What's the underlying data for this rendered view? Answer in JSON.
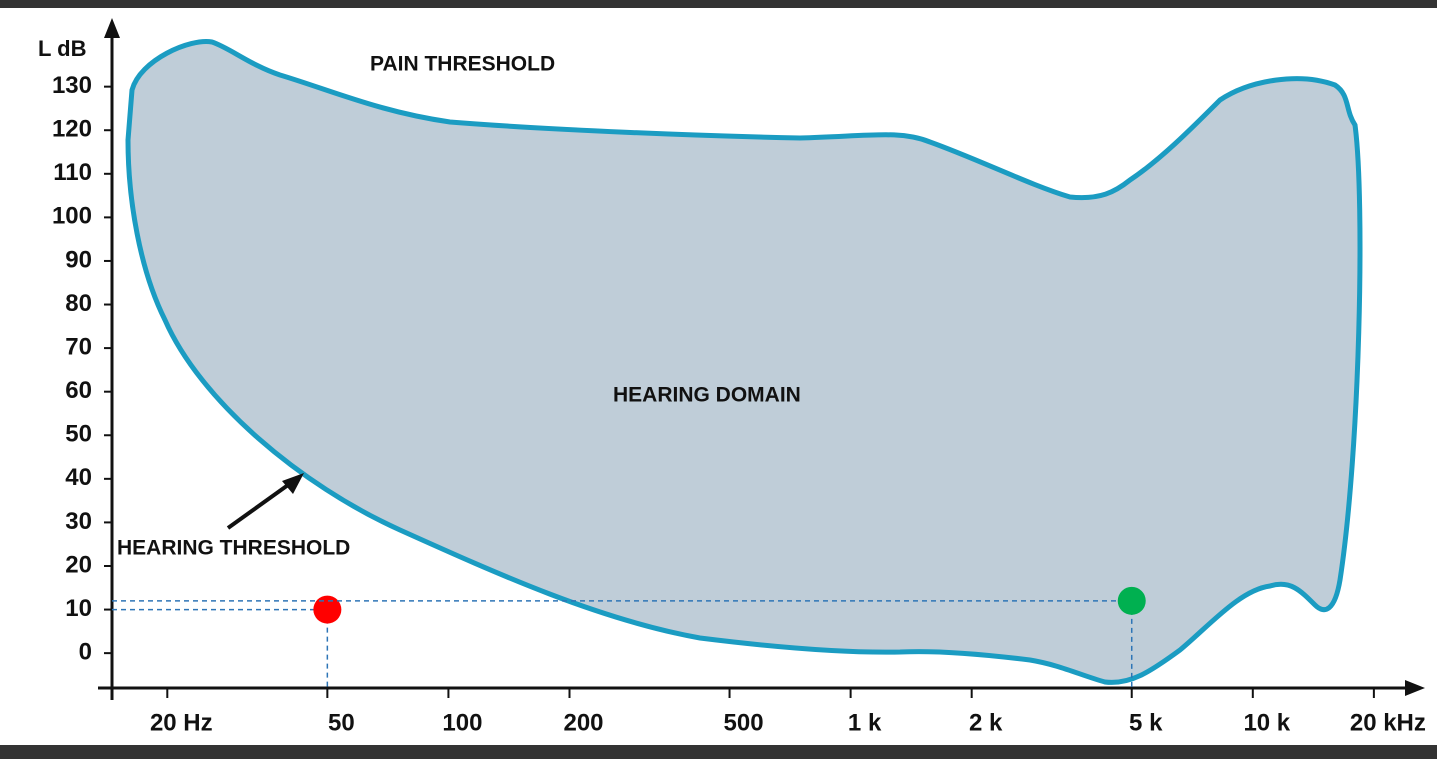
{
  "chart_data": {
    "type": "scatter",
    "ylabel": "L dB",
    "annotations": [
      "PAIN THRESHOLD",
      "HEARING DOMAIN",
      "HEARING THRESHOLD"
    ],
    "x": [
      50,
      5000
    ],
    "values": [
      10,
      12
    ],
    "colors": [
      "#ff0000",
      "#00b050"
    ],
    "xscale": "log",
    "xlim": [
      14,
      26800
    ],
    "xticks": [
      {
        "value": 20,
        "label": "20 Hz"
      },
      50,
      100,
      200,
      500,
      {
        "value": 1000,
        "label": "1 k"
      },
      {
        "value": 2000,
        "label": "2 k"
      },
      {
        "value": 5000,
        "label": "5 k"
      },
      {
        "value": 10000,
        "label": "10 k"
      },
      {
        "value": 20000,
        "label": "20 kHz"
      }
    ],
    "ylim": [
      -8,
      143
    ],
    "yticks": [
      0,
      10,
      20,
      30,
      40,
      50,
      60,
      70,
      80,
      90,
      100,
      110,
      120,
      130
    ]
  }
}
